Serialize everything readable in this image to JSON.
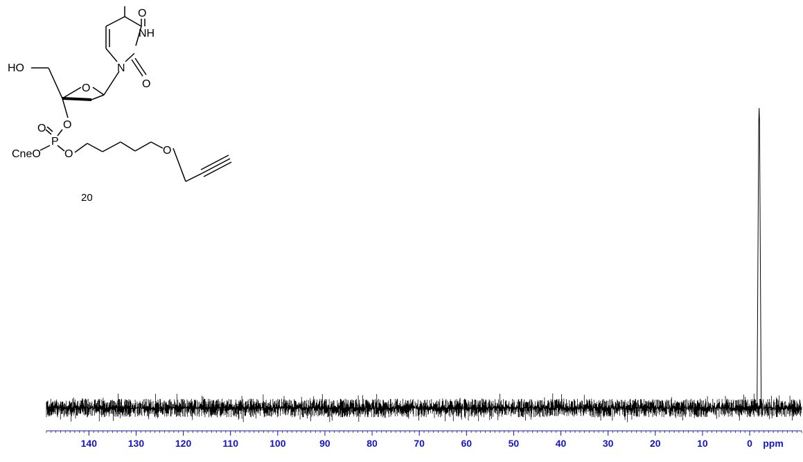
{
  "chart_data": {
    "type": "line",
    "title": "",
    "xlabel": "ppm",
    "ylabel": "",
    "x_reversed": true,
    "xlim": [
      149,
      -11
    ],
    "x_ticks": [
      140,
      130,
      120,
      110,
      100,
      90,
      80,
      70,
      60,
      50,
      40,
      30,
      20,
      10,
      0
    ],
    "x_minor_step": 1,
    "grid": false,
    "legend": "none",
    "baseline": "noise",
    "peaks": [
      {
        "ppm": -2.0,
        "relative_intensity": 1.0
      }
    ]
  },
  "structure": {
    "compound_label": "20",
    "atoms": {
      "o_top": "O",
      "nh": "NH",
      "o_carbonyl": "O",
      "n": "N",
      "ho": "HO",
      "o_ring": "O",
      "o_3": "O",
      "p": "P",
      "o_p_double": "O",
      "cneo": "CneO",
      "o_ester": "O",
      "o_ether": "O"
    }
  },
  "colors": {
    "axis": "#1414c8",
    "spectrum": "#000000",
    "structure": "#000000"
  }
}
